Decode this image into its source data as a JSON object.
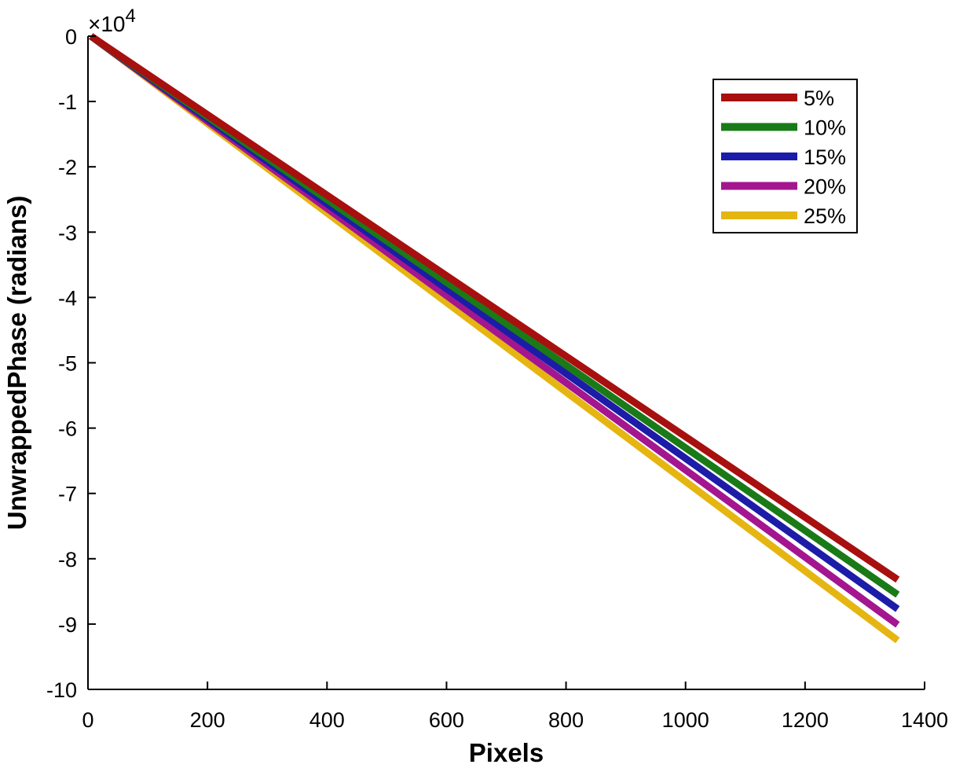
{
  "chart_data": {
    "type": "line",
    "xlabel": "Pixels",
    "ylabel": "UnwrappedPhase (radians)",
    "xlim": [
      0,
      1400
    ],
    "ylim": [
      -10,
      0
    ],
    "y_multiplier": "×10",
    "y_multiplier_exponent": "4",
    "x_ticks": [
      "0",
      "200",
      "400",
      "600",
      "800",
      "1000",
      "1200",
      "1400"
    ],
    "y_ticks": [
      "0",
      "-1",
      "-2",
      "-3",
      "-4",
      "-5",
      "-6",
      "-7",
      "-8",
      "-9",
      "-10"
    ],
    "x_tick_values": [
      0,
      200,
      400,
      600,
      800,
      1000,
      1200,
      1400
    ],
    "y_tick_values": [
      0,
      -1,
      -2,
      -3,
      -4,
      -5,
      -6,
      -7,
      -8,
      -9,
      -10
    ],
    "grid": false,
    "legend_position": "top-right",
    "x": [
      5,
      1355
    ],
    "series": [
      {
        "name": "5%",
        "color": "#a80f0f",
        "values": [
          0,
          -8.32
        ]
      },
      {
        "name": "10%",
        "color": "#1a7a17",
        "values": [
          0,
          -8.55
        ]
      },
      {
        "name": "15%",
        "color": "#1c1ca8",
        "values": [
          0,
          -8.77
        ]
      },
      {
        "name": "20%",
        "color": "#a3168f",
        "values": [
          0,
          -9.01
        ]
      },
      {
        "name": "25%",
        "color": "#e5b512",
        "values": [
          0,
          -9.25
        ]
      }
    ]
  }
}
